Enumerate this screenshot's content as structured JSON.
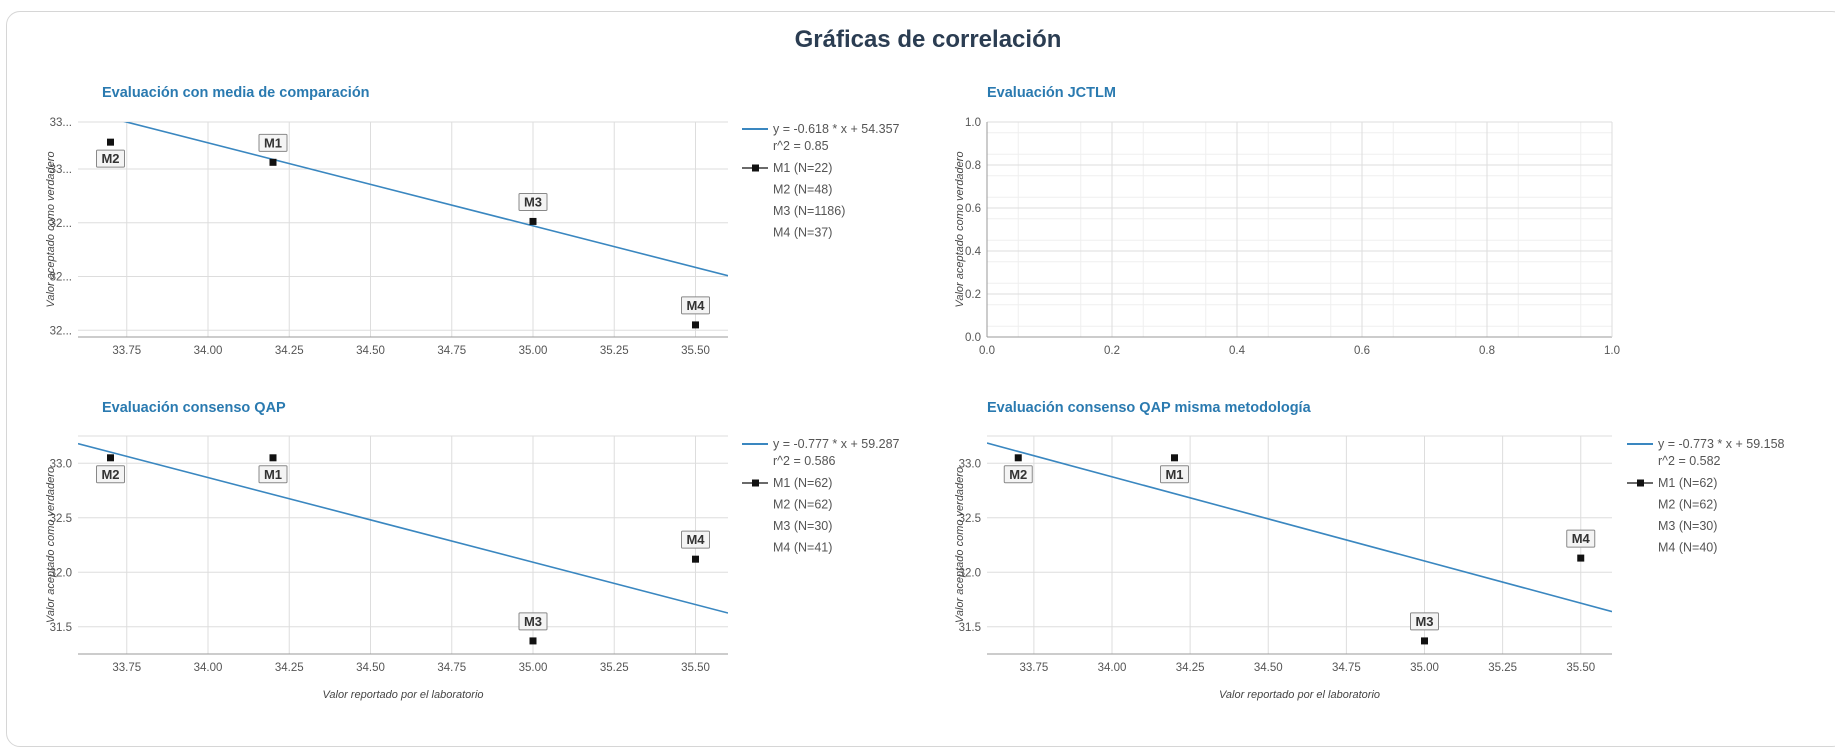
{
  "page_title": "Gráficas de correlación",
  "colors": {
    "title": "#2b3d52",
    "panel_title": "#2a7ab0",
    "line": "#3a87c0",
    "grid": "#dddddd",
    "point": "#111111",
    "text": "#555555"
  },
  "chart_data": [
    {
      "type": "scatter",
      "title": "Evaluación con media de comparación",
      "xlabel": "",
      "ylabel": "Valor aceptado como verdadero",
      "xlim": [
        33.6,
        35.6
      ],
      "ylim": [
        31.9,
        33.5
      ],
      "xticks": [
        "33.75",
        "34.00",
        "34.25",
        "34.50",
        "34.75",
        "35.00",
        "35.25",
        "35.50"
      ],
      "xtick_values": [
        33.75,
        34.0,
        34.25,
        34.5,
        34.75,
        35.0,
        35.25,
        35.5
      ],
      "yticks": [
        "32...",
        "32...",
        "32...",
        "33...",
        "33..."
      ],
      "ytick_values": [
        31.95,
        32.35,
        32.75,
        33.15,
        33.55
      ],
      "grid": true,
      "legend_position": "right",
      "fit": {
        "slope": -0.618,
        "intercept": 54.357,
        "equation": "y = -0.618 * x + 54.357",
        "r2": "r^2 = 0.85"
      },
      "points": [
        {
          "label": "M1",
          "x": 34.2,
          "y": 33.2,
          "legend": "M1 (N=22)"
        },
        {
          "label": "M2",
          "x": 33.7,
          "y": 33.35,
          "legend": "M2 (N=48)"
        },
        {
          "label": "M3",
          "x": 35.0,
          "y": 32.76,
          "legend": "M3 (N=1186)"
        },
        {
          "label": "M4",
          "x": 35.5,
          "y": 31.99,
          "legend": "M4 (N=37)"
        }
      ]
    },
    {
      "type": "scatter",
      "title": "Evaluación JCTLM",
      "xlabel": "",
      "ylabel": "Valor aceptado como verdadero",
      "xlim": [
        0,
        1
      ],
      "ylim": [
        0,
        1
      ],
      "xticks": [
        "0.0",
        "0.2",
        "0.4",
        "0.6",
        "0.8",
        "1.0"
      ],
      "xtick_values": [
        0,
        0.2,
        0.4,
        0.6,
        0.8,
        1.0
      ],
      "yticks": [
        "0.0",
        "0.2",
        "0.4",
        "0.6",
        "0.8",
        "1.0"
      ],
      "ytick_values": [
        0,
        0.2,
        0.4,
        0.6,
        0.8,
        1.0
      ],
      "grid": true,
      "points": []
    },
    {
      "type": "scatter",
      "title": "Evaluación consenso QAP",
      "xlabel": "Valor reportado por el laboratorio",
      "ylabel": "Valor aceptado como verdadero",
      "xlim": [
        33.6,
        35.6
      ],
      "ylim": [
        31.25,
        33.25
      ],
      "xticks": [
        "33.75",
        "34.00",
        "34.25",
        "34.50",
        "34.75",
        "35.00",
        "35.25",
        "35.50"
      ],
      "xtick_values": [
        33.75,
        34.0,
        34.25,
        34.5,
        34.75,
        35.0,
        35.25,
        35.5
      ],
      "yticks": [
        "31.5",
        "32.0",
        "32.5",
        "33.0"
      ],
      "ytick_values": [
        31.5,
        32.0,
        32.5,
        33.0
      ],
      "grid": true,
      "legend_position": "right",
      "fit": {
        "slope": -0.777,
        "intercept": 59.287,
        "equation": "y = -0.777 * x + 59.287",
        "r2": "r^2 = 0.586"
      },
      "points": [
        {
          "label": "M1",
          "x": 34.2,
          "y": 33.05,
          "legend": "M1 (N=62)"
        },
        {
          "label": "M2",
          "x": 33.7,
          "y": 33.05,
          "legend": "M2 (N=62)"
        },
        {
          "label": "M3",
          "x": 35.0,
          "y": 31.37,
          "legend": "M3 (N=30)"
        },
        {
          "label": "M4",
          "x": 35.5,
          "y": 32.12,
          "legend": "M4 (N=41)"
        }
      ]
    },
    {
      "type": "scatter",
      "title": "Evaluación consenso QAP misma metodología",
      "xlabel": "Valor reportado por el laboratorio",
      "ylabel": "Valor aceptado como verdadero",
      "xlim": [
        33.6,
        35.6
      ],
      "ylim": [
        31.25,
        33.25
      ],
      "xticks": [
        "33.75",
        "34.00",
        "34.25",
        "34.50",
        "34.75",
        "35.00",
        "35.25",
        "35.50"
      ],
      "xtick_values": [
        33.75,
        34.0,
        34.25,
        34.5,
        34.75,
        35.0,
        35.25,
        35.5
      ],
      "yticks": [
        "31.5",
        "32.0",
        "32.5",
        "33.0"
      ],
      "ytick_values": [
        31.5,
        32.0,
        32.5,
        33.0
      ],
      "grid": true,
      "legend_position": "right",
      "fit": {
        "slope": -0.773,
        "intercept": 59.158,
        "equation": "y = -0.773 * x + 59.158",
        "r2": "r^2 = 0.582"
      },
      "points": [
        {
          "label": "M1",
          "x": 34.2,
          "y": 33.05,
          "legend": "M1 (N=62)"
        },
        {
          "label": "M2",
          "x": 33.7,
          "y": 33.05,
          "legend": "M2 (N=62)"
        },
        {
          "label": "M3",
          "x": 35.0,
          "y": 31.37,
          "legend": "M3 (N=30)"
        },
        {
          "label": "M4",
          "x": 35.5,
          "y": 32.13,
          "legend": "M4 (N=40)"
        }
      ]
    }
  ]
}
